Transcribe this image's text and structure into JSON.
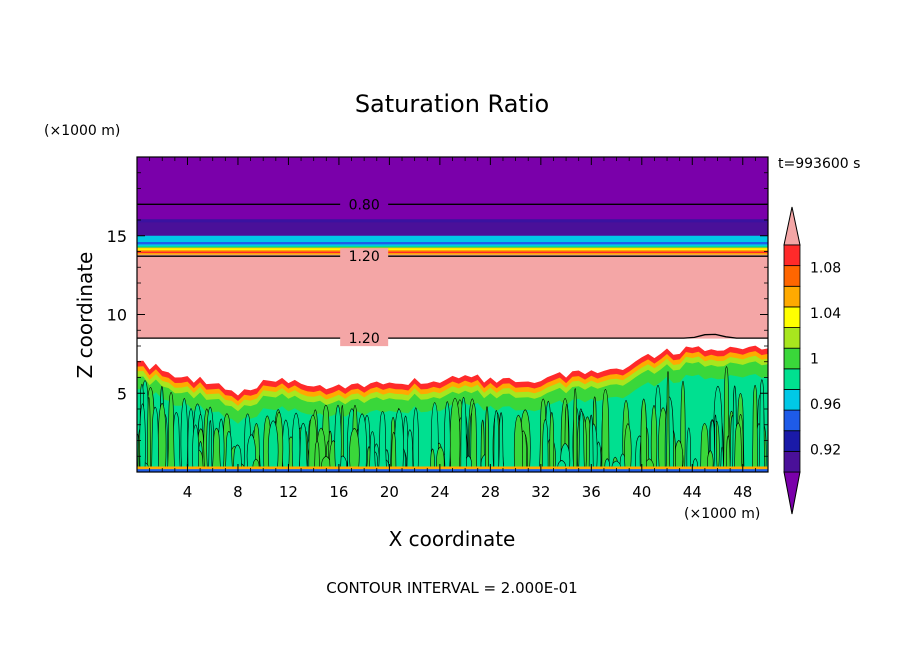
{
  "chart_data": {
    "type": "heatmap",
    "title": "Saturation Ratio",
    "xlabel": "X coordinate",
    "ylabel": "Z coordinate",
    "x_unit": "(×1000 m)",
    "y_unit": "(×1000 m)",
    "time_label": "t=993600 s",
    "footer": "CONTOUR INTERVAL = 2.000E-01",
    "xlim": [
      0,
      50
    ],
    "ylim": [
      0,
      20
    ],
    "x_ticks": [
      4,
      8,
      12,
      16,
      20,
      24,
      28,
      32,
      36,
      40,
      44,
      48
    ],
    "x_tick_labels": [
      "4",
      "8",
      "12",
      "16",
      "20",
      "24",
      "28",
      "32",
      "36",
      "40",
      "44",
      "48"
    ],
    "y_ticks": [
      5,
      10,
      15
    ],
    "y_tick_labels": [
      "5",
      "10",
      "15"
    ],
    "colorbar": {
      "colors": [
        "#7a00aa",
        "#4a1099",
        "#1a1aa8",
        "#1e5be8",
        "#00c8e6",
        "#00e090",
        "#3ad73a",
        "#a8e61e",
        "#ffff00",
        "#ffaa00",
        "#ff6600",
        "#ff2a2a",
        "#f4a6a6"
      ],
      "boundaries": [
        0.9,
        0.91,
        0.92,
        0.94,
        0.96,
        0.98,
        1.0,
        1.02,
        1.04,
        1.06,
        1.08,
        1.1
      ],
      "tick_values": [
        0.92,
        0.96,
        1.0,
        1.04,
        1.08
      ],
      "tick_labels": [
        "0.92",
        "0.96",
        "1",
        "1.04",
        "1.08"
      ]
    },
    "contour_lines": [
      {
        "z": 17.0,
        "label": "0.80",
        "label_x": 18
      },
      {
        "z": 13.7,
        "label": "1.20",
        "label_x": 18
      },
      {
        "z": 8.5,
        "label": "1.20",
        "label_x": 18
      }
    ],
    "layers": [
      {
        "z_bottom": 15.9,
        "z_top": 20.0,
        "value": 0.7
      },
      {
        "z_bottom": 15.0,
        "z_top": 15.9,
        "value": 0.9
      },
      {
        "z_bottom": 14.3,
        "z_top": 15.0,
        "value": 0.94
      },
      {
        "z_bottom": 13.8,
        "z_top": 14.3,
        "value": 1.05
      },
      {
        "z_bottom": 8.5,
        "z_top": 13.8,
        "value": 1.2
      }
    ],
    "cloud_top_profile": {
      "x": [
        0,
        2,
        4,
        6,
        8,
        10,
        12,
        14,
        16,
        18,
        20,
        22,
        24,
        26,
        28,
        30,
        32,
        34,
        36,
        38,
        40,
        42,
        44,
        46,
        48,
        50
      ],
      "z": [
        7.0,
        6.5,
        6.0,
        5.6,
        4.8,
        5.6,
        5.8,
        5.6,
        5.4,
        5.5,
        5.6,
        5.8,
        5.7,
        6.0,
        5.9,
        5.8,
        5.9,
        6.2,
        6.4,
        6.5,
        7.2,
        7.6,
        7.8,
        7.9,
        8.0,
        7.6
      ]
    }
  }
}
